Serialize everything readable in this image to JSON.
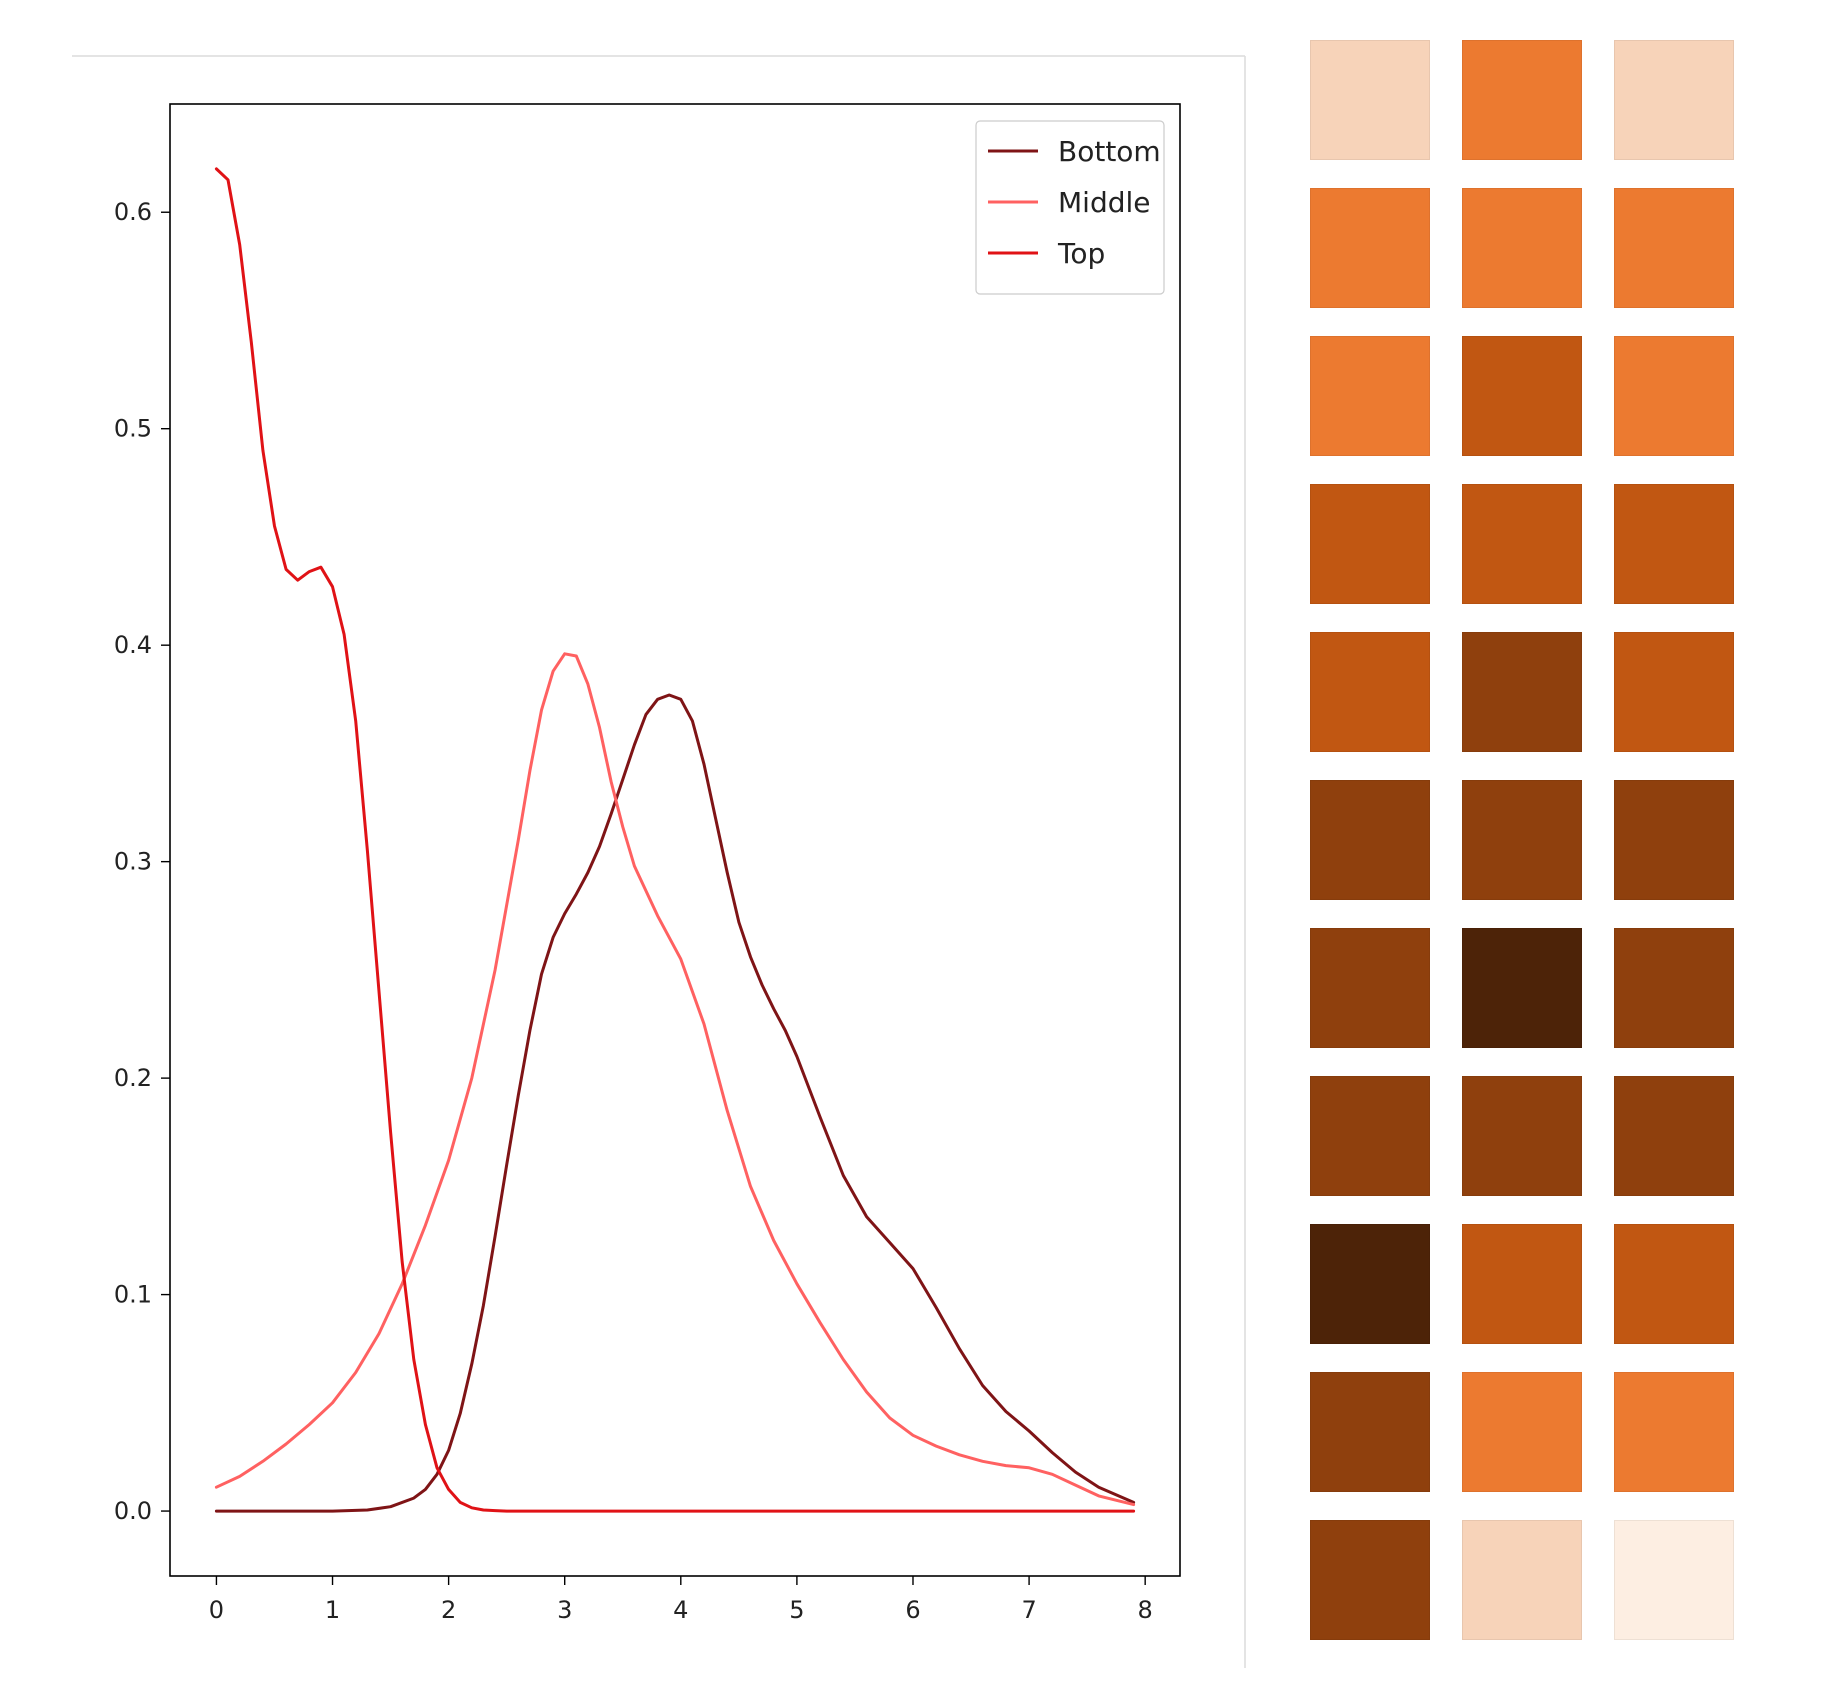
{
  "chart_data": {
    "type": "line",
    "title": "",
    "xlabel": "",
    "ylabel": "",
    "xlim": [
      -0.4,
      8.3
    ],
    "ylim": [
      -0.03,
      0.65
    ],
    "xticks": [
      0,
      1,
      2,
      3,
      4,
      5,
      6,
      7,
      8
    ],
    "xtick_labels": [
      "0",
      "1",
      "2",
      "3",
      "4",
      "5",
      "6",
      "7",
      "8"
    ],
    "yticks": [
      0.0,
      0.1,
      0.2,
      0.3,
      0.4,
      0.5,
      0.6
    ],
    "ytick_labels": [
      "0.0",
      "0.1",
      "0.2",
      "0.3",
      "0.4",
      "0.5",
      "0.6"
    ],
    "grid": false,
    "legend_position": "top-right",
    "series": [
      {
        "name": "Bottom",
        "color": "#7f1416",
        "x": [
          0,
          0.5,
          1.0,
          1.3,
          1.5,
          1.7,
          1.8,
          1.9,
          2.0,
          2.1,
          2.2,
          2.3,
          2.4,
          2.5,
          2.6,
          2.7,
          2.8,
          2.9,
          3.0,
          3.1,
          3.2,
          3.3,
          3.4,
          3.5,
          3.6,
          3.7,
          3.8,
          3.9,
          4.0,
          4.1,
          4.2,
          4.3,
          4.4,
          4.5,
          4.6,
          4.7,
          4.8,
          4.9,
          5.0,
          5.2,
          5.4,
          5.6,
          5.8,
          6.0,
          6.2,
          6.4,
          6.6,
          6.8,
          7.0,
          7.2,
          7.4,
          7.6,
          7.9
        ],
        "y": [
          0.0,
          0.0,
          0.0,
          0.0005,
          0.002,
          0.006,
          0.01,
          0.017,
          0.028,
          0.045,
          0.068,
          0.095,
          0.127,
          0.16,
          0.192,
          0.222,
          0.248,
          0.265,
          0.276,
          0.285,
          0.295,
          0.307,
          0.322,
          0.338,
          0.354,
          0.368,
          0.375,
          0.377,
          0.375,
          0.365,
          0.345,
          0.32,
          0.295,
          0.272,
          0.256,
          0.243,
          0.232,
          0.222,
          0.21,
          0.182,
          0.155,
          0.136,
          0.124,
          0.112,
          0.094,
          0.075,
          0.058,
          0.046,
          0.037,
          0.027,
          0.018,
          0.011,
          0.004
        ]
      },
      {
        "name": "Middle",
        "color": "#ff6161",
        "x": [
          0,
          0.2,
          0.4,
          0.6,
          0.8,
          1.0,
          1.2,
          1.4,
          1.6,
          1.8,
          2.0,
          2.2,
          2.4,
          2.6,
          2.7,
          2.8,
          2.9,
          3.0,
          3.1,
          3.2,
          3.3,
          3.4,
          3.5,
          3.6,
          3.8,
          4.0,
          4.2,
          4.4,
          4.6,
          4.8,
          5.0,
          5.2,
          5.4,
          5.6,
          5.8,
          6.0,
          6.2,
          6.4,
          6.6,
          6.8,
          7.0,
          7.2,
          7.4,
          7.6,
          7.9
        ],
        "y": [
          0.011,
          0.016,
          0.023,
          0.031,
          0.04,
          0.05,
          0.064,
          0.082,
          0.105,
          0.132,
          0.162,
          0.2,
          0.25,
          0.31,
          0.342,
          0.37,
          0.388,
          0.396,
          0.395,
          0.382,
          0.362,
          0.337,
          0.316,
          0.298,
          0.275,
          0.255,
          0.225,
          0.185,
          0.15,
          0.125,
          0.105,
          0.087,
          0.07,
          0.055,
          0.043,
          0.035,
          0.03,
          0.026,
          0.023,
          0.021,
          0.02,
          0.017,
          0.012,
          0.007,
          0.003
        ]
      },
      {
        "name": "Top",
        "color": "#e01216",
        "x": [
          0,
          0.1,
          0.2,
          0.3,
          0.4,
          0.5,
          0.6,
          0.7,
          0.8,
          0.9,
          1.0,
          1.1,
          1.2,
          1.3,
          1.4,
          1.5,
          1.6,
          1.7,
          1.8,
          1.9,
          2.0,
          2.1,
          2.2,
          2.3,
          2.4,
          2.5,
          2.7,
          3.0,
          4.0,
          5.0,
          6.0,
          7.0,
          7.9
        ],
        "y": [
          0.62,
          0.615,
          0.585,
          0.54,
          0.49,
          0.455,
          0.435,
          0.43,
          0.434,
          0.436,
          0.427,
          0.405,
          0.365,
          0.305,
          0.24,
          0.175,
          0.115,
          0.07,
          0.04,
          0.02,
          0.01,
          0.004,
          0.0015,
          0.0005,
          0.0002,
          0.0,
          0.0,
          0.0,
          0.0,
          0.0,
          0.0,
          0.0,
          0.0
        ]
      }
    ]
  },
  "swatches": {
    "columns": 3,
    "rows": [
      [
        "#f7d3b9",
        "#ec7a30",
        "#f7d3b9"
      ],
      [
        "#ec7a30",
        "#ec7a30",
        "#ec7a30"
      ],
      [
        "#ec7a30",
        "#c15712",
        "#ec7a30"
      ],
      [
        "#c15712",
        "#c15712",
        "#c15712"
      ],
      [
        "#c15712",
        "#8f400d",
        "#c15712"
      ],
      [
        "#8f400d",
        "#8f400d",
        "#8f400d"
      ],
      [
        "#8f400d",
        "#4d2308",
        "#8f400d"
      ],
      [
        "#8f400d",
        "#8f400d",
        "#8f400d"
      ],
      [
        "#4d2308",
        "#c15712",
        "#c15712"
      ],
      [
        "#8f400d",
        "#ec7a30",
        "#ec7a30"
      ],
      [
        "#8f400d",
        "#f7d3b9",
        "#fdeee2"
      ]
    ]
  }
}
